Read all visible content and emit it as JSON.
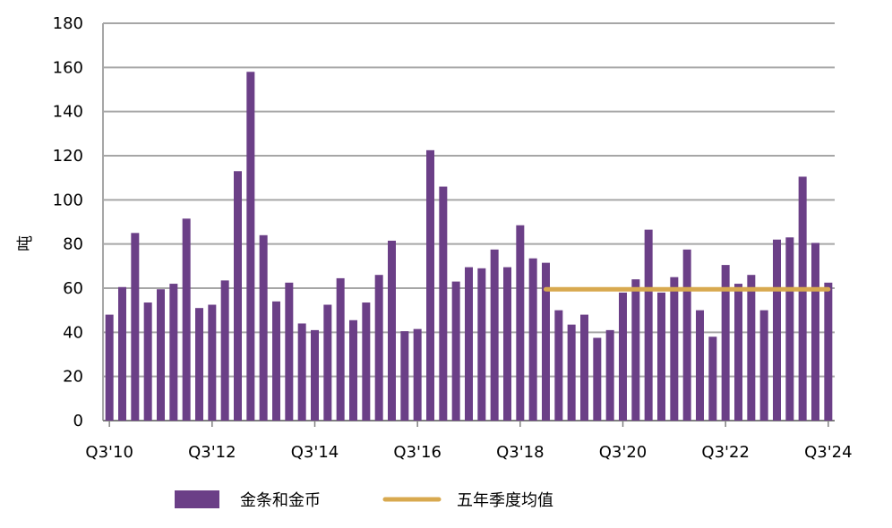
{
  "chart_data": {
    "type": "bar",
    "ylabel": "吨",
    "ylim": [
      0,
      180
    ],
    "y_ticks": [
      0,
      20,
      40,
      60,
      80,
      100,
      120,
      140,
      160,
      180
    ],
    "grid": true,
    "legend_placement": "bottom",
    "x_tick_labels": [
      {
        "index": 0,
        "label": "Q3'10"
      },
      {
        "index": 8,
        "label": "Q3'12"
      },
      {
        "index": 16,
        "label": "Q3'14"
      },
      {
        "index": 24,
        "label": "Q3'16"
      },
      {
        "index": 32,
        "label": "Q3'18"
      },
      {
        "index": 40,
        "label": "Q3'20"
      },
      {
        "index": 48,
        "label": "Q3'22"
      },
      {
        "index": 56,
        "label": "Q3'24"
      }
    ],
    "series": [
      {
        "name": "金条和金币",
        "type": "bar",
        "color": "#6b3f87",
        "values": [
          48,
          60.5,
          85,
          53.5,
          59.5,
          62,
          91.5,
          51,
          52.5,
          63.5,
          113,
          158,
          84,
          54,
          62.5,
          44,
          41,
          52.5,
          64.5,
          45.5,
          53.5,
          66,
          81.5,
          40.5,
          41.5,
          122.5,
          106,
          63,
          69.5,
          69,
          77.5,
          69.5,
          88.5,
          73.5,
          71.5,
          50,
          43.5,
          48,
          37.5,
          41,
          58,
          64,
          86.5,
          58,
          65,
          77.5,
          50,
          38,
          70.5,
          62,
          66,
          50,
          82,
          83,
          110.5,
          80.5,
          62.5
        ]
      },
      {
        "name": "五年季度均值",
        "type": "line",
        "color": "#d8a94f",
        "start_index": 34,
        "end_index": 56,
        "value": 59.5
      }
    ]
  }
}
